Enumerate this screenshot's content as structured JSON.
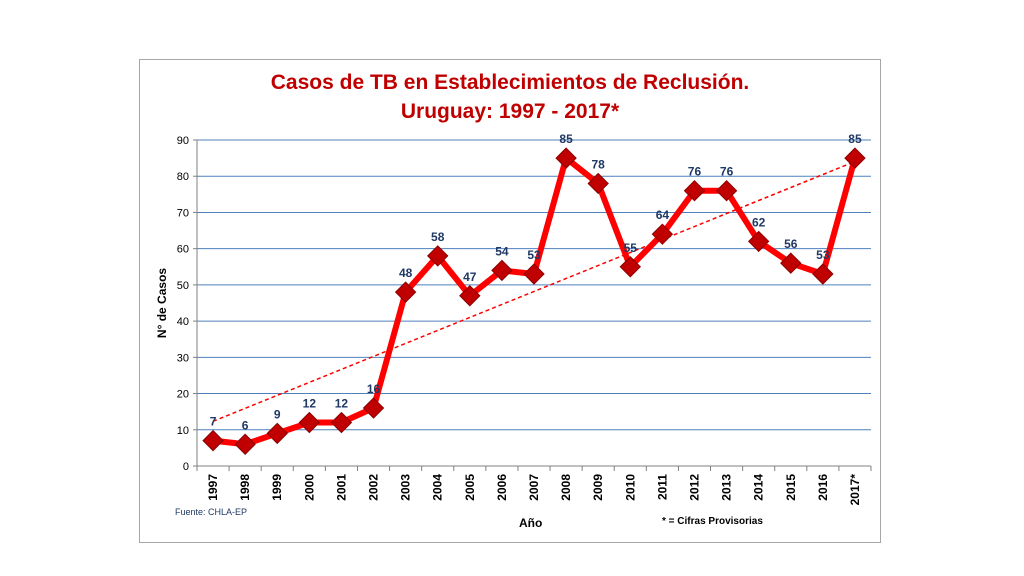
{
  "chart_data": {
    "type": "line",
    "title": "Casos de TB en Establecimientos de Reclusión.",
    "subtitle": "Uruguay: 1997 - 2017*",
    "xlabel": "Año",
    "ylabel": "N° de Casos",
    "ylim": [
      0,
      90
    ],
    "yticks": [
      "0",
      "10",
      "20",
      "30",
      "40",
      "50",
      "60",
      "70",
      "80",
      "90"
    ],
    "grid": true,
    "categories": [
      "1997",
      "1998",
      "1999",
      "2000",
      "2001",
      "2002",
      "2003",
      "2004",
      "2005",
      "2006",
      "2007",
      "2008",
      "2009",
      "2010",
      "2011",
      "2012",
      "2013",
      "2014",
      "2015",
      "2016",
      "2017*"
    ],
    "series": [
      {
        "values": [
          7,
          6,
          9,
          12,
          12,
          16,
          48,
          58,
          47,
          54,
          53,
          85,
          78,
          55,
          64,
          76,
          76,
          62,
          56,
          53,
          85
        ],
        "data_labels": [
          "7",
          "6",
          "9",
          "12",
          "12",
          "16",
          "48",
          "58",
          "47",
          "54",
          "53",
          "85",
          "78",
          "55",
          "64",
          "76",
          "76",
          "62",
          "56",
          "53",
          "85"
        ],
        "color": "#ff0000",
        "marker_color": "#c00000"
      }
    ],
    "trendline": {
      "type": "linear",
      "style": "dashed",
      "color": "#ff0000"
    },
    "source": "Fuente: CHLA-EP",
    "footnote": "* = Cifras Provisorias",
    "colors": {
      "title": "#c00000",
      "labels": "#1f3864",
      "grid": "#4f81bd"
    }
  }
}
